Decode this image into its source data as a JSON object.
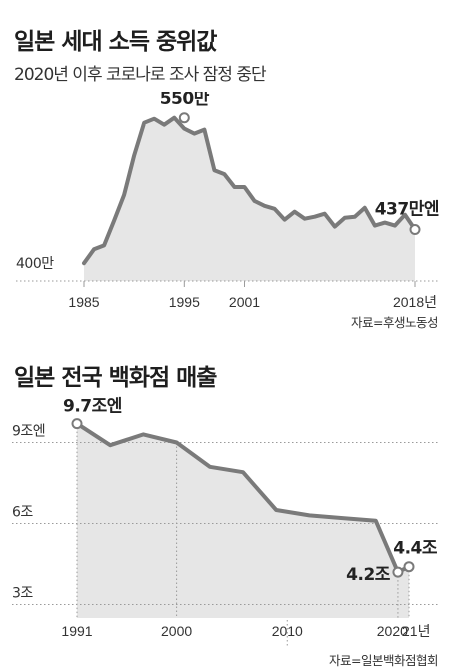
{
  "chart_data": [
    {
      "type": "area",
      "title": "일본 세대 소득 중위값",
      "subtitle": "2020년 이후 코로나로 조사 잠정 중단",
      "source": "자료=후생노동성",
      "x": [
        1985,
        1986,
        1987,
        1988,
        1989,
        1990,
        1991,
        1992,
        1993,
        1994,
        1995,
        1996,
        1997,
        1998,
        1999,
        2000,
        2001,
        2002,
        2003,
        2004,
        2005,
        2006,
        2007,
        2008,
        2009,
        2010,
        2011,
        2012,
        2013,
        2014,
        2015,
        2016,
        2017,
        2018
      ],
      "values": [
        403,
        417,
        421,
        446,
        472,
        512,
        545,
        549,
        543,
        550,
        539,
        534,
        538,
        497,
        493,
        480,
        480,
        466,
        461,
        458,
        447,
        455,
        448,
        450,
        453,
        440,
        449,
        450,
        459,
        441,
        444,
        441,
        452,
        437
      ],
      "xticks": [
        "1985",
        "1995",
        "2001",
        "2018년"
      ],
      "xtick_values": [
        1985,
        1995,
        2001,
        2018
      ],
      "ylabel_text": "400만",
      "ylabel_value": 400,
      "ylim": [
        385,
        575
      ],
      "annotations": [
        {
          "x": 1995,
          "y": 550,
          "text": "550만"
        },
        {
          "x": 2018,
          "y": 437,
          "text": "437만엔"
        }
      ]
    },
    {
      "type": "area",
      "title": "일본 전국 백화점 매출",
      "source": "자료=일본백화점협회",
      "x": [
        1991,
        1994,
        1997,
        2000,
        2003,
        2006,
        2009,
        2012,
        2015,
        2018,
        2020,
        2021
      ],
      "values": [
        9.7,
        8.9,
        9.3,
        9.0,
        8.1,
        7.9,
        6.5,
        6.3,
        6.2,
        6.1,
        4.2,
        4.4
      ],
      "xticks": [
        "1991",
        "2000",
        "2010",
        "2020",
        "21년"
      ],
      "xtick_values": [
        1991,
        2000,
        2010,
        2020,
        2021
      ],
      "yticks": [
        "9조엔",
        "6조",
        "3조"
      ],
      "ytick_values": [
        9,
        6,
        3
      ],
      "ylim": [
        2.5,
        10.5
      ],
      "annotations": [
        {
          "x": 1991,
          "y": 9.7,
          "text": "9.7조엔"
        },
        {
          "x": 2020,
          "y": 4.2,
          "text": "4.2조"
        },
        {
          "x": 2021,
          "y": 4.4,
          "text": "4.4조"
        }
      ]
    }
  ],
  "colors": {
    "line": "#7a7a7a",
    "fill": "#e6e6e6",
    "grid": "#9a9a9a",
    "text": "#222222"
  }
}
